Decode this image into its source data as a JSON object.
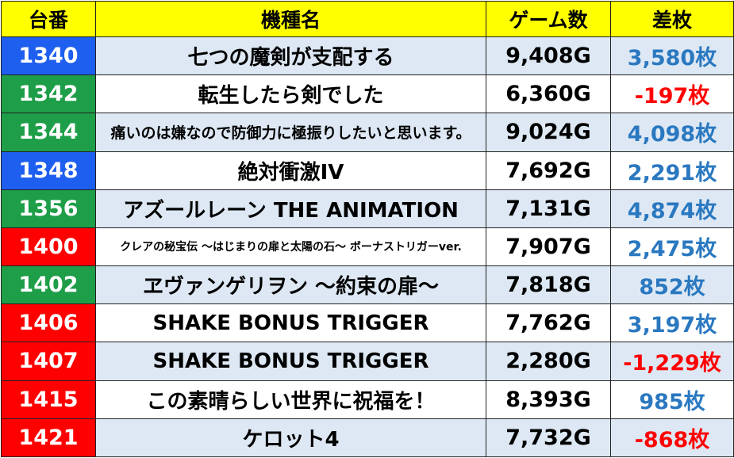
{
  "colors": {
    "header_bg": "#ffff00",
    "blue": "#1e5ff0",
    "green": "#1e9e48",
    "red": "#ff0000",
    "positive_text": "#2a78c0",
    "negative_text": "#ff0000",
    "stripe": "#dde8f4"
  },
  "header": {
    "col_number": "台番",
    "col_machine": "機種名",
    "col_games": "ゲーム数",
    "col_diff": "差枚"
  },
  "rows": [
    {
      "number": "1340",
      "color": "blue",
      "machine": "七つの魔剣が支配する",
      "games": "9,408G",
      "diff": "3,580枚",
      "sign": "pos",
      "size": ""
    },
    {
      "number": "1342",
      "color": "green",
      "machine": "転生したら剣でした",
      "games": "6,360G",
      "diff": "-197枚",
      "sign": "neg",
      "size": ""
    },
    {
      "number": "1344",
      "color": "green",
      "machine": "痛いのは嫌なので防御力に極振りしたいと思います。",
      "games": "9,024G",
      "diff": "4,098枚",
      "sign": "pos",
      "size": "sz-s"
    },
    {
      "number": "1348",
      "color": "blue",
      "machine": "絶対衝激IV",
      "games": "7,692G",
      "diff": "2,291枚",
      "sign": "pos",
      "size": ""
    },
    {
      "number": "1356",
      "color": "green",
      "machine": "アズールレーン THE ANIMATION",
      "games": "7,131G",
      "diff": "4,874枚",
      "sign": "pos",
      "size": ""
    },
    {
      "number": "1400",
      "color": "red",
      "machine": "クレアの秘宝伝 ～はじまりの扉と太陽の石～ ボーナストリガーver.",
      "games": "7,907G",
      "diff": "2,475枚",
      "sign": "pos",
      "size": "sz-xs"
    },
    {
      "number": "1402",
      "color": "green",
      "machine": "ヱヴァンゲリヲン ～約束の扉～",
      "games": "7,818G",
      "diff": "852枚",
      "sign": "pos",
      "size": ""
    },
    {
      "number": "1406",
      "color": "red",
      "machine": "SHAKE BONUS TRIGGER",
      "games": "7,762G",
      "diff": "3,197枚",
      "sign": "pos",
      "size": ""
    },
    {
      "number": "1407",
      "color": "red",
      "machine": "SHAKE BONUS TRIGGER",
      "games": "2,280G",
      "diff": "-1,229枚",
      "sign": "neg",
      "size": ""
    },
    {
      "number": "1415",
      "color": "red",
      "machine": "この素晴らしい世界に祝福を！",
      "games": "8,393G",
      "diff": "985枚",
      "sign": "pos",
      "size": ""
    },
    {
      "number": "1421",
      "color": "red",
      "machine": "ケロット4",
      "games": "7,732G",
      "diff": "-868枚",
      "sign": "neg",
      "size": ""
    }
  ]
}
